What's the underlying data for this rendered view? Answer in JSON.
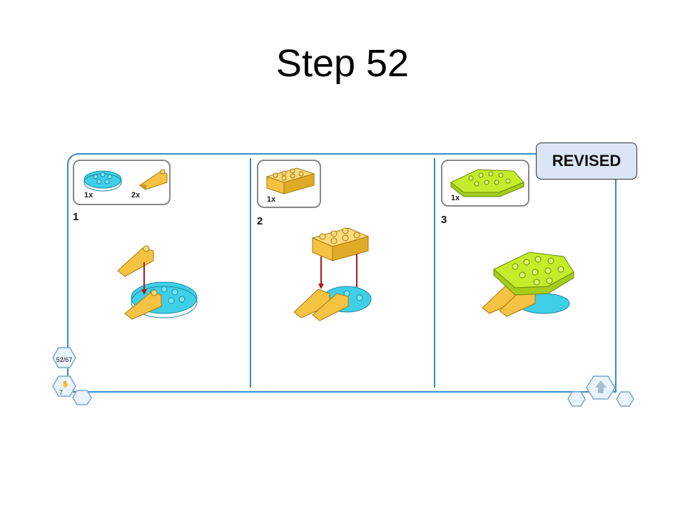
{
  "slide": {
    "title": "Step 52"
  },
  "badge": {
    "label": "REVISED"
  },
  "steps": [
    {
      "number": "1",
      "parts": [
        {
          "qty": "1x"
        },
        {
          "qty": "2x"
        }
      ]
    },
    {
      "number": "2",
      "parts": [
        {
          "qty": "1x"
        }
      ]
    },
    {
      "number": "3",
      "parts": [
        {
          "qty": "1x"
        }
      ]
    }
  ],
  "nav": {
    "page_counter": "52/67",
    "lower_count": "7"
  },
  "colors": {
    "frame": "#3a8cc9",
    "cyan_plate": "#3fd0e8",
    "yellow_brick": "#f5c242",
    "lime_plate": "#c4ec2a",
    "arrow": "#b01818"
  }
}
